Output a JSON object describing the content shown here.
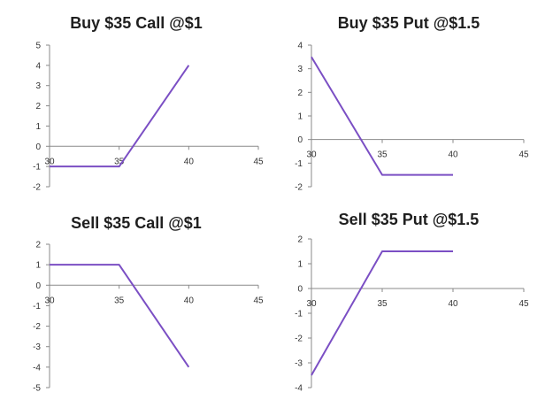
{
  "colors": {
    "line": "#7b4fc4",
    "axis": "#8a8a8a",
    "tick_text": "#333333",
    "title": "#1f1f1f"
  },
  "chart_data": [
    {
      "type": "line",
      "title": "Buy $35 Call @$1",
      "xlim": [
        30,
        45
      ],
      "ylim": [
        -2,
        5
      ],
      "xticks": [
        30,
        35,
        40,
        45
      ],
      "yticks": [
        -2,
        -1,
        0,
        1,
        2,
        3,
        4,
        5
      ],
      "x": [
        30,
        35,
        40
      ],
      "y": [
        -1,
        -1,
        4
      ],
      "grid": false,
      "legend": "none"
    },
    {
      "type": "line",
      "title": "Buy $35 Put @$1.5",
      "xlim": [
        30,
        45
      ],
      "ylim": [
        -2,
        4
      ],
      "xticks": [
        30,
        35,
        40,
        45
      ],
      "yticks": [
        -2,
        -1,
        0,
        1,
        2,
        3,
        4
      ],
      "x": [
        30,
        35,
        40
      ],
      "y": [
        3.5,
        -1.5,
        -1.5
      ],
      "grid": false,
      "legend": "none"
    },
    {
      "type": "line",
      "title": "Sell $35 Call @$1",
      "xlim": [
        30,
        45
      ],
      "ylim": [
        -5,
        2
      ],
      "xticks": [
        30,
        35,
        40,
        45
      ],
      "yticks": [
        -5,
        -4,
        -3,
        -2,
        -1,
        0,
        1,
        2
      ],
      "x": [
        30,
        35,
        40
      ],
      "y": [
        1,
        1,
        -4
      ],
      "grid": false,
      "legend": "none"
    },
    {
      "type": "line",
      "title": "Sell $35 Put @$1.5",
      "xlim": [
        30,
        45
      ],
      "ylim": [
        -4,
        2
      ],
      "xticks": [
        30,
        35,
        40,
        45
      ],
      "yticks": [
        -4,
        -3,
        -2,
        -1,
        0,
        1,
        2
      ],
      "x": [
        30,
        35,
        40
      ],
      "y": [
        -3.5,
        1.5,
        1.5
      ],
      "grid": false,
      "legend": "none"
    }
  ]
}
